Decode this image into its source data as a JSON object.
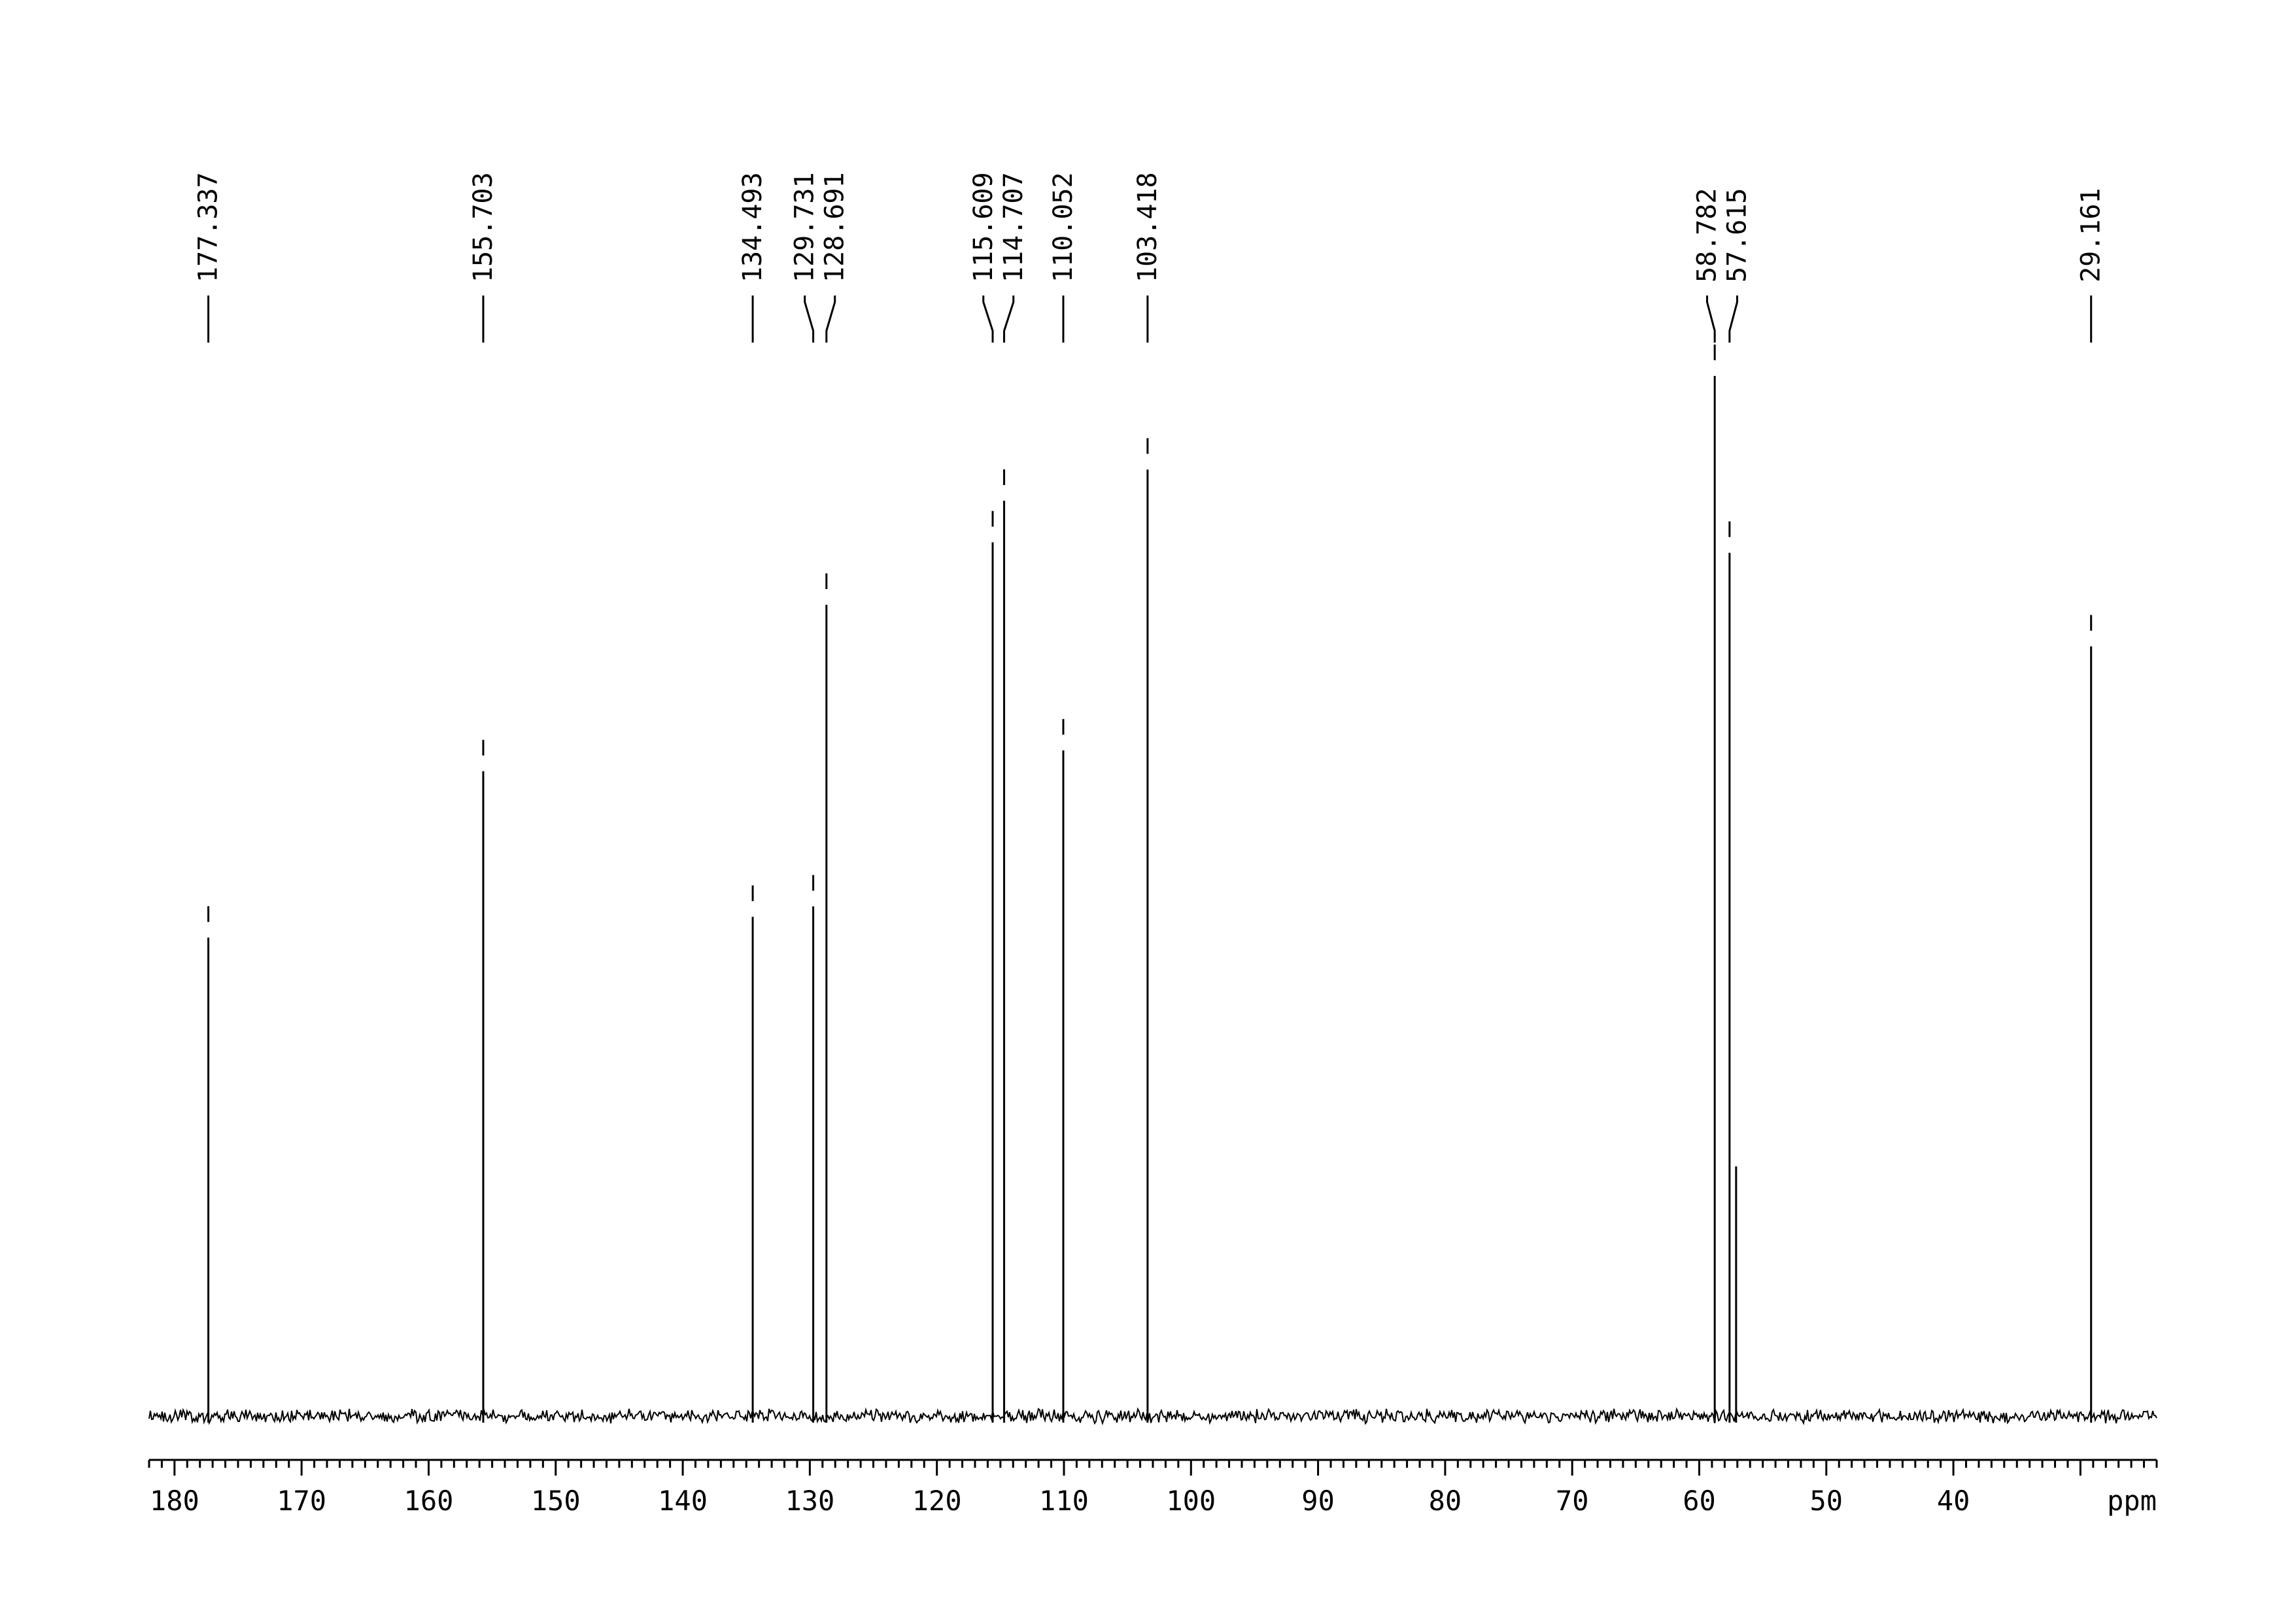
{
  "chart_data": {
    "type": "line",
    "title": "",
    "xlabel": "ppm",
    "ylabel": "",
    "x_axis_reversed": true,
    "xlim": [
      182,
      24
    ],
    "x_ticks": [
      180,
      170,
      160,
      150,
      140,
      130,
      120,
      110,
      100,
      90,
      80,
      70,
      60,
      50,
      40
    ],
    "x_tick_labels": [
      "180",
      "170",
      "160",
      "150",
      "140",
      "130",
      "120",
      "110",
      "100",
      "90",
      "80",
      "70",
      "60",
      "50",
      "40"
    ],
    "unit_label": "ppm",
    "grid": false,
    "legend": "none",
    "line_color": "#000000",
    "peaks": [
      {
        "ppm": 177.337,
        "label": "177.337",
        "height": 0.46
      },
      {
        "ppm": 155.703,
        "label": "155.703",
        "height": 0.62
      },
      {
        "ppm": 134.493,
        "label": "134.493",
        "height": 0.48
      },
      {
        "ppm": 129.731,
        "label": "129.731",
        "height": 0.49
      },
      {
        "ppm": 128.691,
        "label": "128.691",
        "height": 0.78
      },
      {
        "ppm": 115.609,
        "label": "115.609",
        "height": 0.84
      },
      {
        "ppm": 114.707,
        "label": "114.707",
        "height": 0.88
      },
      {
        "ppm": 110.052,
        "label": "110.052",
        "height": 0.64
      },
      {
        "ppm": 103.418,
        "label": "103.418",
        "height": 0.91
      },
      {
        "ppm": 58.782,
        "label": "58.782",
        "height": 1.0
      },
      {
        "ppm": 57.615,
        "label": "57.615",
        "height": 0.83
      },
      {
        "ppm": 29.161,
        "label": "29.161",
        "height": 0.74
      }
    ],
    "minor_peaks": [
      {
        "ppm": 57.1,
        "height": 0.24
      }
    ]
  }
}
